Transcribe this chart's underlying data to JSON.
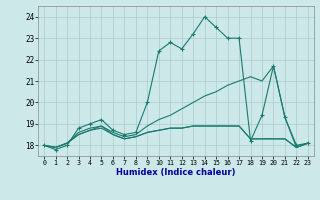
{
  "xlabel": "Humidex (Indice chaleur)",
  "bg_color": "#cce8e8",
  "grid_color": "#aacccc",
  "line_color": "#1a7a6e",
  "xlim": [
    -0.5,
    23.5
  ],
  "ylim": [
    17.5,
    24.5
  ],
  "xticks": [
    0,
    1,
    2,
    3,
    4,
    5,
    6,
    7,
    8,
    9,
    10,
    11,
    12,
    13,
    14,
    15,
    16,
    17,
    18,
    19,
    20,
    21,
    22,
    23
  ],
  "yticks": [
    18,
    19,
    20,
    21,
    22,
    23,
    24
  ],
  "line1_x": [
    0,
    1,
    2,
    3,
    4,
    5,
    6,
    7,
    8,
    9,
    10,
    11,
    12,
    13,
    14,
    15,
    16,
    17,
    18,
    19,
    20,
    21,
    22,
    23
  ],
  "line1_y": [
    18.0,
    17.8,
    18.0,
    18.8,
    19.0,
    19.2,
    18.7,
    18.5,
    18.6,
    20.0,
    22.4,
    22.8,
    22.5,
    23.2,
    24.0,
    23.5,
    23.0,
    23.0,
    18.2,
    19.4,
    21.7,
    19.3,
    18.0,
    18.1
  ],
  "line2_x": [
    0,
    1,
    2,
    3,
    4,
    5,
    6,
    7,
    8,
    9,
    10,
    11,
    12,
    13,
    14,
    15,
    16,
    17,
    18,
    19,
    20,
    21,
    22,
    23
  ],
  "line2_y": [
    18.0,
    17.9,
    18.1,
    18.6,
    18.8,
    18.9,
    18.6,
    18.4,
    18.5,
    18.9,
    19.2,
    19.4,
    19.7,
    20.0,
    20.3,
    20.5,
    20.8,
    21.0,
    21.2,
    21.0,
    21.7,
    19.3,
    17.9,
    18.1
  ],
  "line3_x": [
    0,
    1,
    2,
    3,
    4,
    5,
    6,
    7,
    8,
    9,
    10,
    11,
    12,
    13,
    14,
    15,
    16,
    17,
    18,
    19,
    20,
    21,
    22,
    23
  ],
  "line3_y": [
    18.0,
    17.9,
    18.1,
    18.5,
    18.7,
    18.8,
    18.5,
    18.3,
    18.4,
    18.6,
    18.7,
    18.8,
    18.8,
    18.9,
    18.9,
    18.9,
    18.9,
    18.9,
    18.3,
    18.3,
    18.3,
    18.3,
    17.9,
    18.1
  ],
  "line4_x": [
    0,
    1,
    2,
    3,
    4,
    5,
    6,
    7,
    8,
    9,
    10,
    11,
    12,
    13,
    14,
    15,
    16,
    17,
    18,
    19,
    20,
    21,
    22,
    23
  ],
  "line4_y": [
    18.0,
    17.9,
    18.1,
    18.5,
    18.7,
    18.9,
    18.5,
    18.3,
    18.4,
    18.6,
    18.7,
    18.8,
    18.8,
    18.9,
    18.9,
    18.9,
    18.9,
    18.9,
    18.3,
    18.3,
    18.3,
    18.3,
    17.9,
    18.1
  ]
}
